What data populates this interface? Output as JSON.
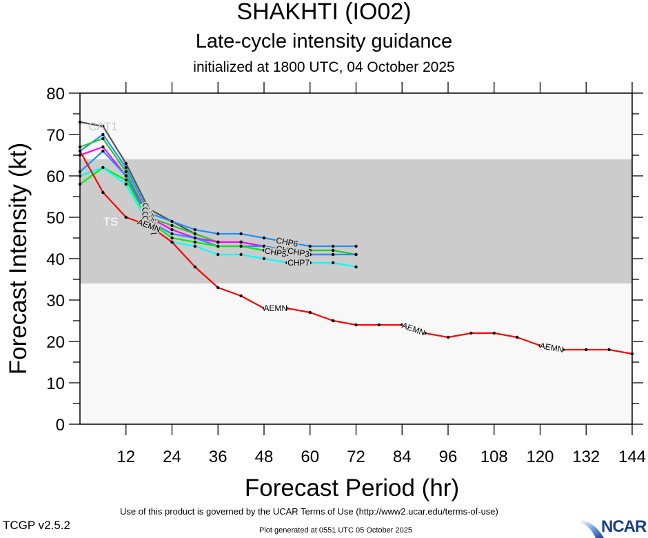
{
  "titles": {
    "storm": "SHAKHTI (IO02)",
    "product": "Late-cycle intensity guidance",
    "init": "initialized at 1800 UTC, 04 October 2025"
  },
  "footer": {
    "terms": "Use of this product is governed by the UCAR Terms of Use (http://www2.ucar.edu/terms-of-use)",
    "version": "TCGP v2.5.2",
    "generated": "Plot generated at 0551 UTC   05 October 2025",
    "logo": "NCAR"
  },
  "chart_data": {
    "type": "line",
    "title": "SHAKHTI (IO02)",
    "subtitle": "Late-cycle intensity guidance",
    "xlabel": "Forecast Period (hr)",
    "ylabel": "Forecast Intensity (kt)",
    "xlim": [
      0,
      144
    ],
    "ylim": [
      0,
      80
    ],
    "xticks": [
      12,
      24,
      36,
      48,
      60,
      72,
      84,
      96,
      108,
      120,
      132,
      144
    ],
    "yticks": [
      0,
      10,
      20,
      30,
      40,
      50,
      60,
      70,
      80
    ],
    "grid": false,
    "legend": "none",
    "bands": [
      {
        "label": "TS",
        "from": 34,
        "to": 64,
        "color": "#cccccc"
      },
      {
        "label": "CAT1",
        "from": 64,
        "to": 83,
        "color": "#f8f8f8"
      }
    ],
    "series": [
      {
        "name": "GRAY",
        "color": "#555555",
        "label": "",
        "x": [
          0,
          6,
          12,
          18,
          24,
          30,
          36
        ],
        "y": [
          73,
          72,
          63,
          52,
          49,
          46,
          44
        ]
      },
      {
        "name": "CHP6",
        "color": "#1e90ff",
        "label": "CHP6",
        "x": [
          0,
          6,
          12,
          18,
          24,
          30,
          36,
          42,
          48,
          54,
          60,
          66,
          72
        ],
        "y": [
          66,
          70,
          62,
          51,
          49,
          47,
          46,
          46,
          45,
          44,
          43,
          43,
          43
        ]
      },
      {
        "name": "CHP4",
        "color": "#22cc22",
        "label": "CHP4",
        "x": [
          0,
          6,
          12,
          18,
          24,
          30,
          36,
          42,
          48,
          54,
          60,
          66,
          72
        ],
        "y": [
          67,
          69,
          61,
          50,
          48,
          46,
          44,
          44,
          43,
          42,
          42,
          42,
          41
        ]
      },
      {
        "name": "CHP2",
        "color": "#ff00ff",
        "label": "CHP2",
        "x": [
          0,
          6,
          12,
          18,
          24,
          30,
          36,
          42,
          48,
          54,
          60,
          66
        ],
        "y": [
          65,
          67,
          60,
          50,
          47,
          45,
          44,
          44,
          43,
          42,
          41,
          41
        ]
      },
      {
        "name": "CHP3",
        "color": "#1e90ff",
        "label": "CHP3",
        "x": [
          0,
          6,
          12,
          18,
          24,
          30,
          36,
          42,
          48,
          54,
          60,
          66,
          72
        ],
        "y": [
          61,
          66,
          60,
          49,
          46,
          45,
          43,
          43,
          43,
          42,
          41,
          41,
          41
        ]
      },
      {
        "name": "CHP5",
        "color": "#00ee00",
        "label": "CHP5",
        "x": [
          0,
          6,
          12,
          18,
          24,
          30,
          36,
          42,
          48,
          54
        ],
        "y": [
          58,
          62,
          59,
          49,
          45,
          44,
          43,
          43,
          42,
          41
        ]
      },
      {
        "name": "CHP7",
        "color": "#00ffff",
        "label": "CHP7",
        "x": [
          0,
          6,
          12,
          18,
          24,
          30,
          36,
          42,
          48,
          54,
          60,
          66,
          72
        ],
        "y": [
          60,
          62,
          58,
          48,
          44,
          43,
          41,
          41,
          40,
          39,
          39,
          39,
          38
        ]
      },
      {
        "name": "AEMN",
        "color": "#ff0000",
        "label": "AEMN",
        "x": [
          0,
          6,
          12,
          18,
          24,
          30,
          36,
          42,
          48,
          54,
          60,
          66,
          72,
          78,
          84,
          90,
          96,
          102,
          108,
          114,
          120,
          126,
          132,
          138,
          144
        ],
        "y": [
          66,
          56,
          50,
          48,
          44,
          38,
          33,
          31,
          28,
          28,
          27,
          25,
          24,
          24,
          24,
          22,
          21,
          22,
          22,
          21,
          19,
          18,
          18,
          18,
          17
        ]
      }
    ],
    "annotations": [
      {
        "text": "CAT1",
        "x": 6,
        "y": 72
      },
      {
        "text": "TS",
        "x": 8,
        "y": 49
      },
      {
        "text": "CHP6",
        "series": "CHP6",
        "x": 18
      },
      {
        "text": "CHP4",
        "series": "CHP4",
        "x": 18
      },
      {
        "text": "CHP2",
        "series": "CHP2",
        "x": 18
      },
      {
        "text": "CHP3",
        "series": "CHP3",
        "x": 18
      },
      {
        "text": "CHP5",
        "series": "CHP5",
        "x": 18
      },
      {
        "text": "CHP7",
        "series": "CHP7",
        "x": 18
      },
      {
        "text": "AEMN",
        "series": "AEMN",
        "x": 18
      },
      {
        "text": "CHP6",
        "series": "CHP6",
        "x": 54
      },
      {
        "text": "CHP4",
        "series": "CHP4",
        "x": 54
      },
      {
        "text": "CHP2",
        "series": "CHP2",
        "x": 54
      },
      {
        "text": "CHP3",
        "series": "CHP3",
        "x": 57
      },
      {
        "text": "CHP5",
        "series": "CHP5",
        "x": 51
      },
      {
        "text": "CHP7",
        "series": "CHP7",
        "x": 57
      },
      {
        "text": "AEMN",
        "series": "AEMN",
        "x": 51
      },
      {
        "text": "AEMN",
        "series": "AEMN",
        "x": 87
      },
      {
        "text": "AEMN",
        "series": "AEMN",
        "x": 123
      }
    ]
  }
}
